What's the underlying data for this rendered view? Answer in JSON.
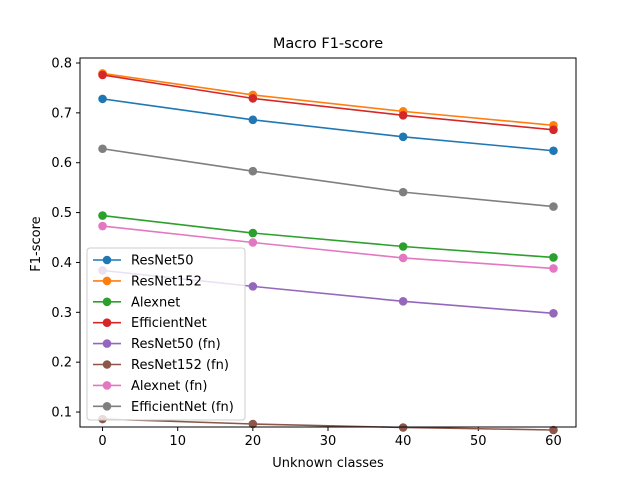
{
  "chart_data": {
    "type": "line",
    "title": "Macro F1-score",
    "xlabel": "Unknown classes",
    "ylabel": "F1-score",
    "x": [
      0,
      20,
      40,
      60
    ],
    "xlim": [
      -3,
      63
    ],
    "ylim": [
      0.07,
      0.81
    ],
    "xticks": [
      0,
      10,
      20,
      30,
      40,
      50,
      60
    ],
    "yticks": [
      0.1,
      0.2,
      0.3,
      0.4,
      0.5,
      0.6,
      0.7,
      0.8
    ],
    "grid": false,
    "legend_position": "lower-left",
    "series": [
      {
        "name": "ResNet50",
        "color": "#1f77b4",
        "values": [
          0.728,
          0.686,
          0.652,
          0.624
        ]
      },
      {
        "name": "ResNet152",
        "color": "#ff7f0e",
        "values": [
          0.779,
          0.736,
          0.703,
          0.675
        ]
      },
      {
        "name": "Alexnet",
        "color": "#2ca02c",
        "values": [
          0.494,
          0.459,
          0.432,
          0.41
        ]
      },
      {
        "name": "EfficientNet",
        "color": "#d62728",
        "values": [
          0.776,
          0.729,
          0.695,
          0.666
        ]
      },
      {
        "name": "ResNet50 (fn)",
        "color": "#9467bd",
        "values": [
          0.384,
          0.352,
          0.322,
          0.298
        ]
      },
      {
        "name": "ResNet152 (fn)",
        "color": "#8c564b",
        "values": [
          0.086,
          0.076,
          0.069,
          0.064
        ]
      },
      {
        "name": "Alexnet (fn)",
        "color": "#e377c2",
        "values": [
          0.473,
          0.44,
          0.409,
          0.388
        ]
      },
      {
        "name": "EfficientNet (fn)",
        "color": "#7f7f7f",
        "values": [
          0.628,
          0.583,
          0.541,
          0.512
        ]
      }
    ]
  }
}
